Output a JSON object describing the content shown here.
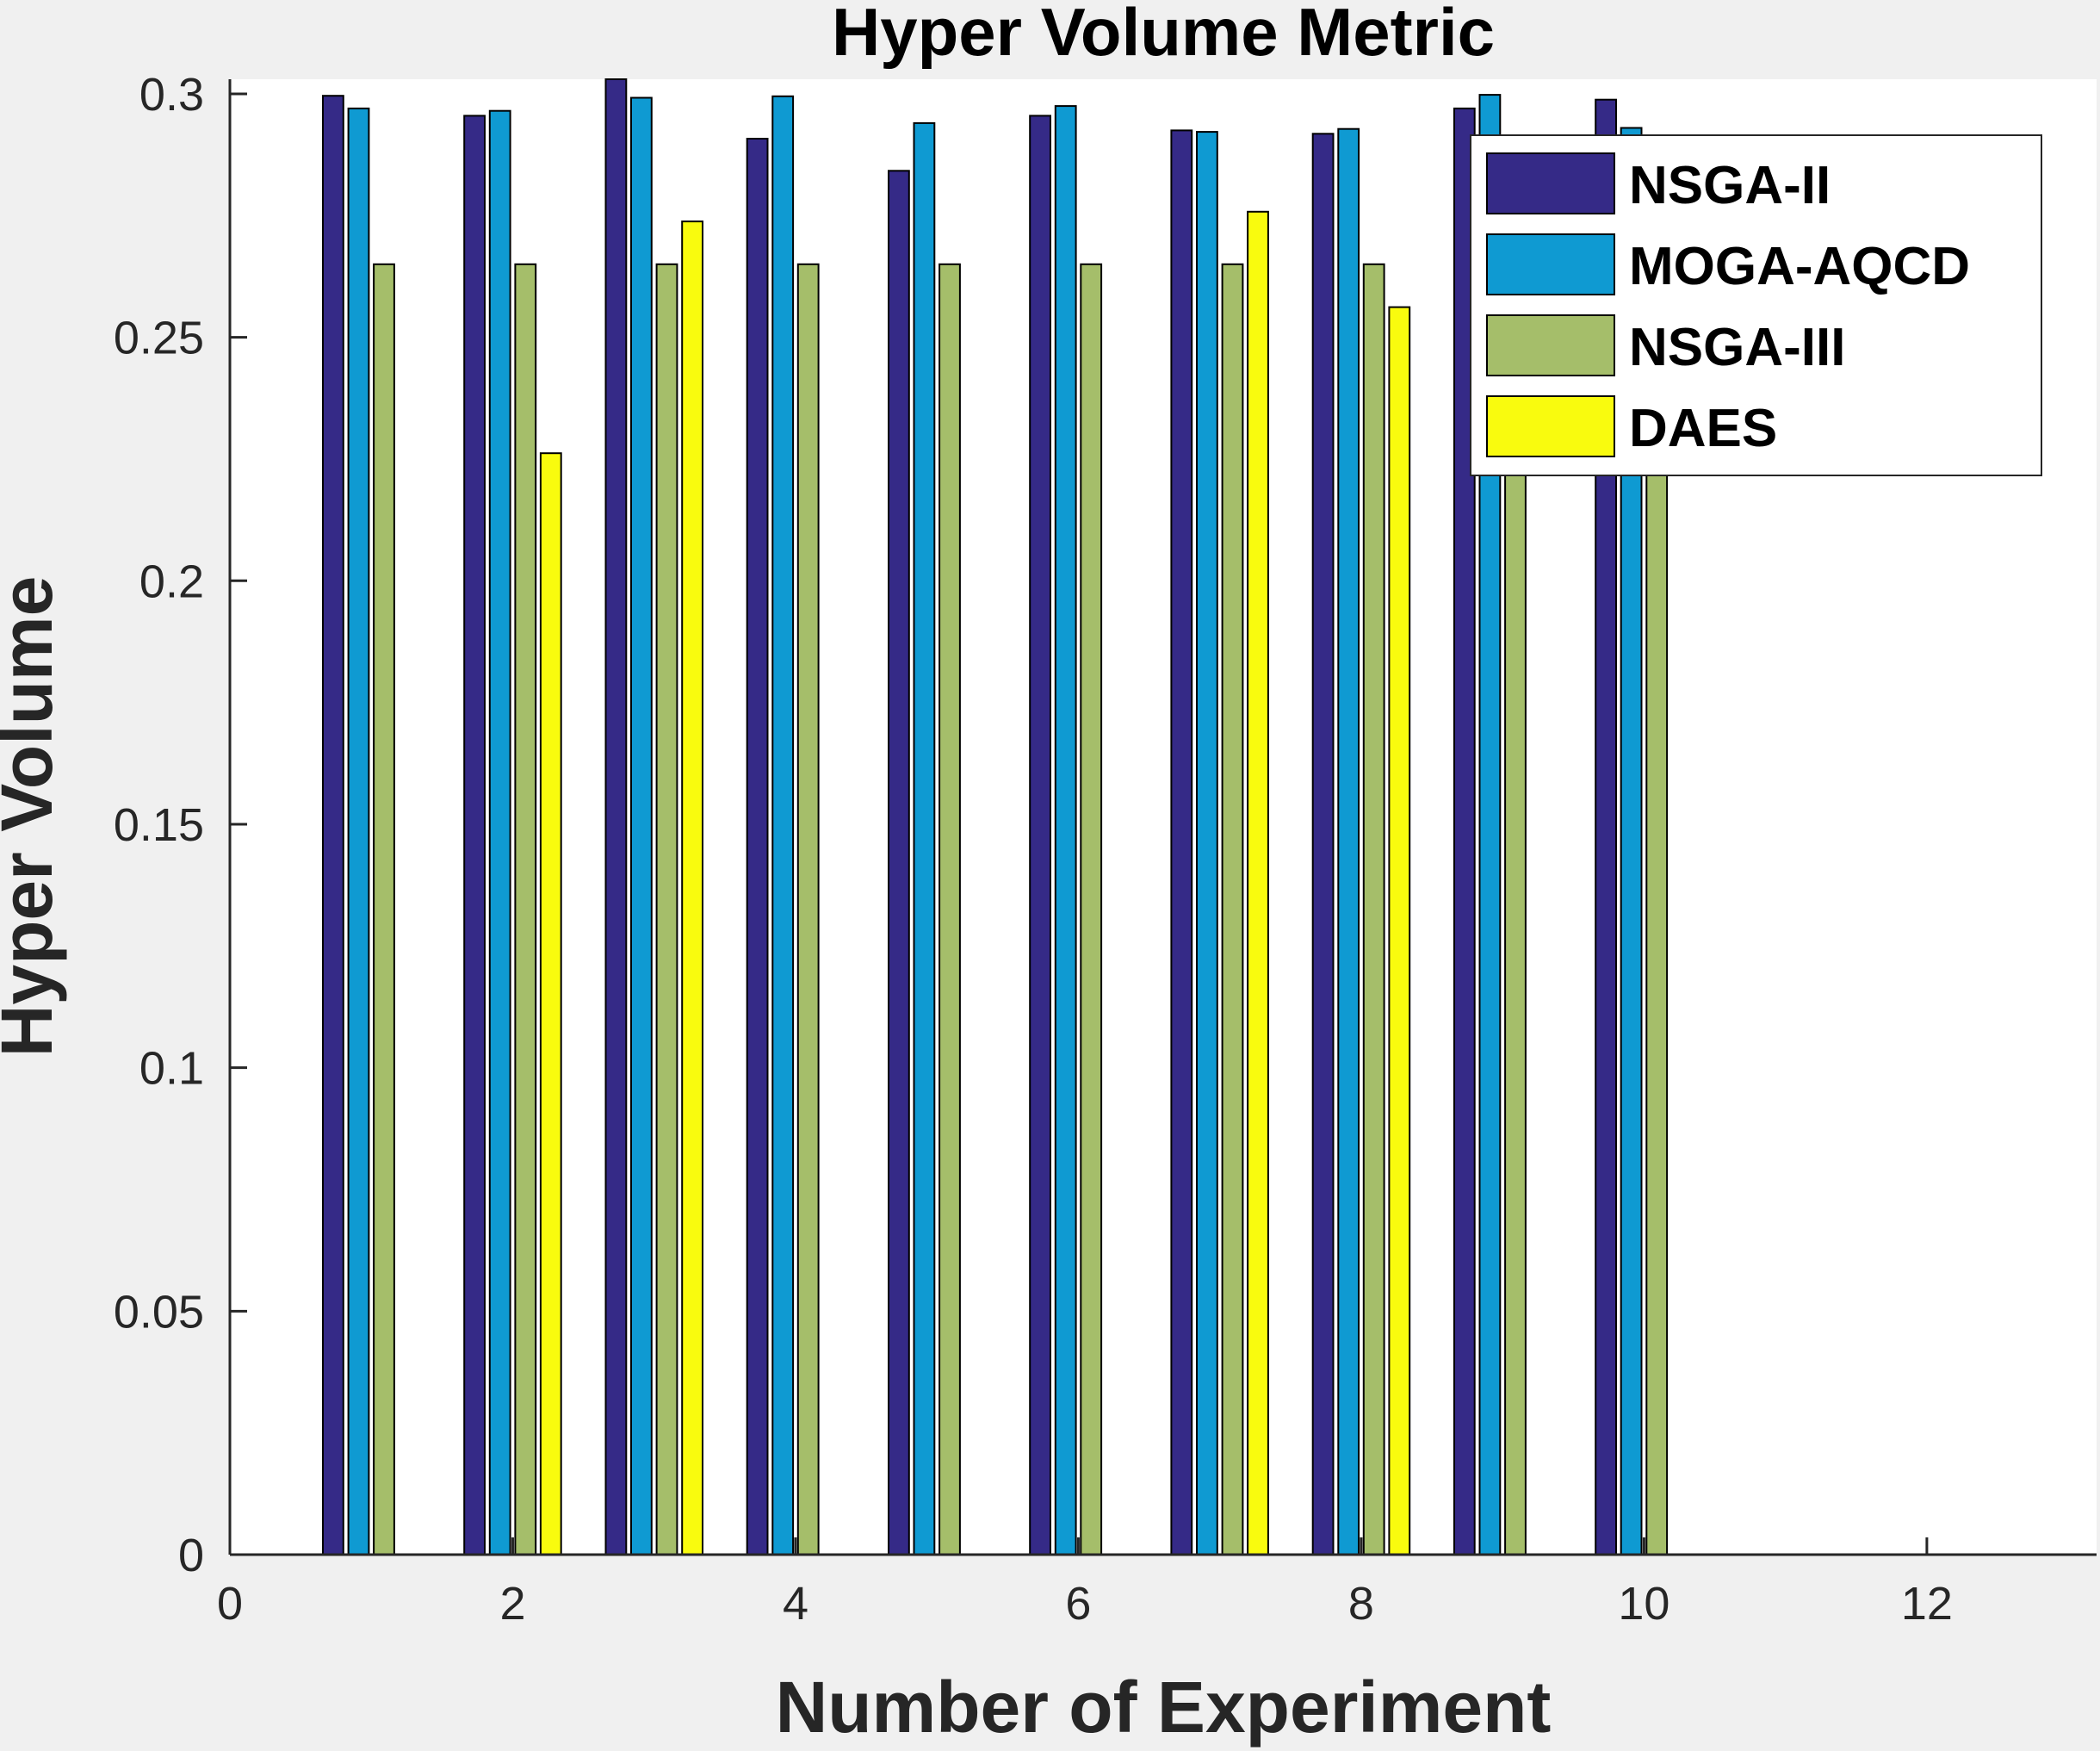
{
  "chart_data": {
    "type": "bar",
    "title": "Hyper Volume Metric",
    "xlabel": "Number of Experiment",
    "ylabel": "Hyper Volume",
    "xlim": [
      0,
      13.2
    ],
    "ylim": [
      0,
      0.303
    ],
    "xticks": [
      0,
      2,
      4,
      6,
      8,
      10,
      12
    ],
    "xtick_labels": [
      "0",
      "2",
      "4",
      "6",
      "8",
      "10",
      "12"
    ],
    "yticks": [
      0,
      0.05,
      0.1,
      0.15,
      0.2,
      0.25,
      0.3
    ],
    "ytick_labels": [
      "0",
      "0.05",
      "0.1",
      "0.15",
      "0.2",
      "0.25",
      "0.3"
    ],
    "categories": [
      1,
      2,
      3,
      4,
      5,
      6,
      7,
      8,
      9,
      10
    ],
    "grid": false,
    "legend_position": "top-right",
    "series": [
      {
        "name": "NSGA-II",
        "color": "#352a87",
        "values": [
          0.2996,
          0.2955,
          0.303,
          0.2908,
          0.2842,
          0.2955,
          0.2925,
          0.2918,
          0.297,
          0.2988
        ]
      },
      {
        "name": "MOGA-AQCD",
        "color": "#0f9ad2",
        "values": [
          0.297,
          0.2965,
          0.2992,
          0.2995,
          0.294,
          0.2975,
          0.2922,
          0.2928,
          0.2998,
          0.293
        ]
      },
      {
        "name": "NSGA-III",
        "color": "#a5be6a",
        "values": [
          0.265,
          0.265,
          0.265,
          0.265,
          0.265,
          0.265,
          0.265,
          0.265,
          0.265,
          0.265
        ]
      },
      {
        "name": "DAES",
        "color": "#f9fb0e",
        "values": [
          0,
          0.2262,
          0.2738,
          0,
          0,
          0,
          0.2758,
          0.2562,
          0,
          0
        ]
      }
    ]
  }
}
